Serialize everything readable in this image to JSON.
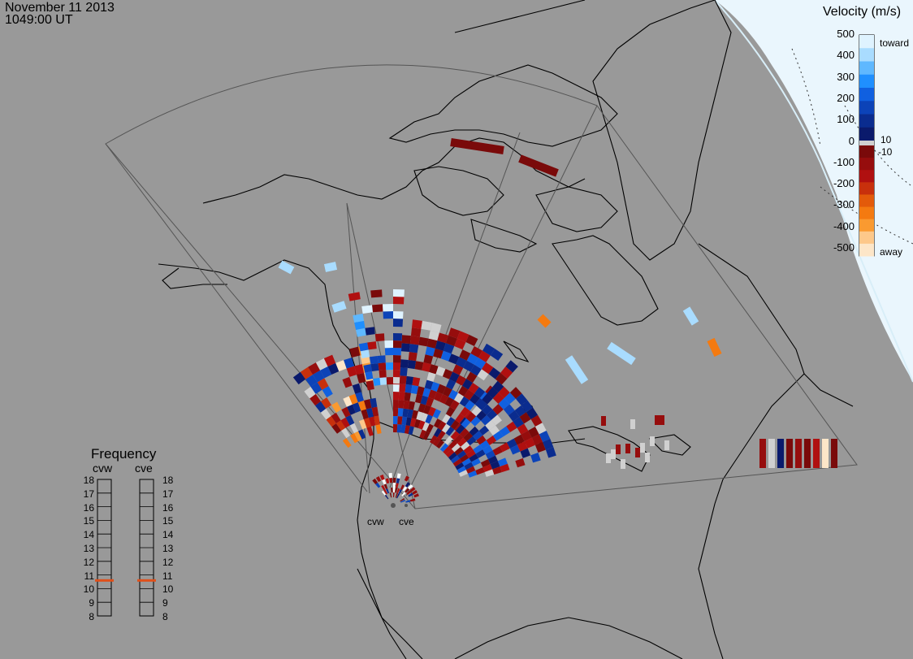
{
  "header": {
    "date": "November 11 2013",
    "time": "1049:00 UT"
  },
  "colorbar": {
    "title": "Velocity (m/s)",
    "ticks": [
      "500",
      "400",
      "300",
      "200",
      "100",
      "0",
      "-100",
      "-200",
      "-300",
      "-400",
      "-500"
    ],
    "toward_label": "toward",
    "away_label": "away",
    "pos_threshold": "10",
    "neg_threshold": "-10",
    "colors_toward": [
      "#dff3ff",
      "#a9dcff",
      "#5fb8ff",
      "#1f8fff",
      "#1060e0",
      "#0c43b8",
      "#0a2c8f",
      "#0a1a6c"
    ],
    "colors_away": [
      "#7a0a0a",
      "#960d0d",
      "#b01010",
      "#c8300c",
      "#e35a0a",
      "#f47a10",
      "#fa9a30",
      "#fdc88a",
      "#fde6c8"
    ]
  },
  "frequency_panel": {
    "title": "Frequency",
    "radars": [
      {
        "name": "cvw",
        "frequency_mhz": 10.6
      },
      {
        "name": "cve",
        "frequency_mhz": 10.6
      }
    ],
    "scale": [
      "18",
      "17",
      "16",
      "15",
      "14",
      "13",
      "12",
      "11",
      "10",
      "9",
      "8"
    ],
    "marker_color": "#e0501a"
  },
  "radar_sites": [
    "cvw",
    "cve"
  ],
  "colors": {
    "background": "#999999",
    "land_outline": "#000000",
    "fov_outline": "#444444",
    "ground_scatter": "#d0d0d0"
  }
}
